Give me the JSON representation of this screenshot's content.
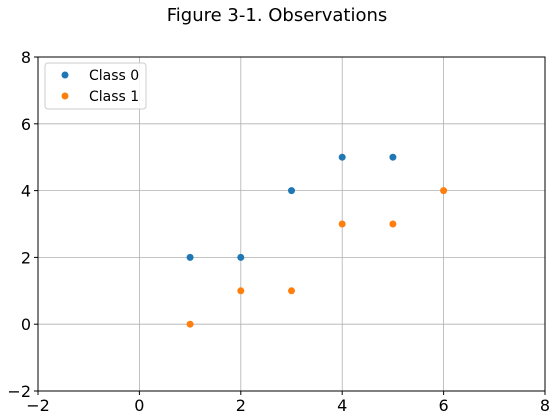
{
  "chart_data": {
    "type": "scatter",
    "title": "Figure 3-1. Observations",
    "xlabel": "",
    "ylabel": "",
    "xlim": [
      -2,
      8
    ],
    "ylim": [
      -2,
      8
    ],
    "xticks": [
      -2,
      0,
      2,
      4,
      6,
      8
    ],
    "yticks": [
      -2,
      0,
      2,
      4,
      6,
      8
    ],
    "xtick_labels": [
      "−2",
      "0",
      "2",
      "4",
      "6",
      "8"
    ],
    "ytick_labels": [
      "−2",
      "0",
      "2",
      "4",
      "6",
      "8"
    ],
    "grid": true,
    "legend_position": "top-left",
    "series": [
      {
        "name": "Class 0",
        "color": "#1f77b4",
        "x": [
          1,
          2,
          3,
          4,
          5
        ],
        "y": [
          2,
          2,
          4,
          5,
          5
        ]
      },
      {
        "name": "Class 1",
        "color": "#ff7f0e",
        "x": [
          1,
          2,
          3,
          4,
          5,
          6
        ],
        "y": [
          0,
          1,
          1,
          3,
          3,
          4
        ]
      }
    ]
  }
}
